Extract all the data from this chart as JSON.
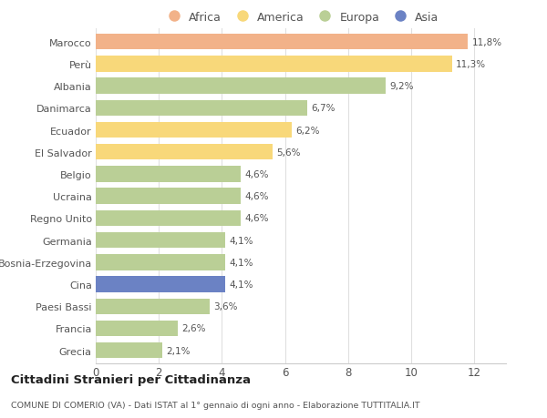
{
  "countries": [
    "Marocco",
    "Perù",
    "Albania",
    "Danimarca",
    "Ecuador",
    "El Salvador",
    "Belgio",
    "Ucraina",
    "Regno Unito",
    "Germania",
    "Bosnia-Erzegovina",
    "Cina",
    "Paesi Bassi",
    "Francia",
    "Grecia"
  ],
  "values": [
    11.8,
    11.3,
    9.2,
    6.7,
    6.2,
    5.6,
    4.6,
    4.6,
    4.6,
    4.1,
    4.1,
    4.1,
    3.6,
    2.6,
    2.1
  ],
  "labels": [
    "11,8%",
    "11,3%",
    "9,2%",
    "6,7%",
    "6,2%",
    "5,6%",
    "4,6%",
    "4,6%",
    "4,6%",
    "4,1%",
    "4,1%",
    "4,1%",
    "3,6%",
    "2,6%",
    "2,1%"
  ],
  "continents": [
    "Africa",
    "America",
    "Europa",
    "Europa",
    "America",
    "America",
    "Europa",
    "Europa",
    "Europa",
    "Europa",
    "Europa",
    "Asia",
    "Europa",
    "Europa",
    "Europa"
  ],
  "colors": {
    "Africa": "#F2B289",
    "America": "#F8D87A",
    "Europa": "#BACF96",
    "Asia": "#6B82C4"
  },
  "legend_labels": [
    "Africa",
    "America",
    "Europa",
    "Asia"
  ],
  "legend_colors": [
    "#F2B289",
    "#F8D87A",
    "#BACF96",
    "#6B82C4"
  ],
  "title": "Cittadini Stranieri per Cittadinanza",
  "subtitle": "COMUNE DI COMERIO (VA) - Dati ISTAT al 1° gennaio di ogni anno - Elaborazione TUTTITALIA.IT",
  "xlim": [
    0,
    13
  ],
  "xticks": [
    0,
    2,
    4,
    6,
    8,
    10,
    12
  ],
  "background_color": "#ffffff",
  "bar_height": 0.72
}
